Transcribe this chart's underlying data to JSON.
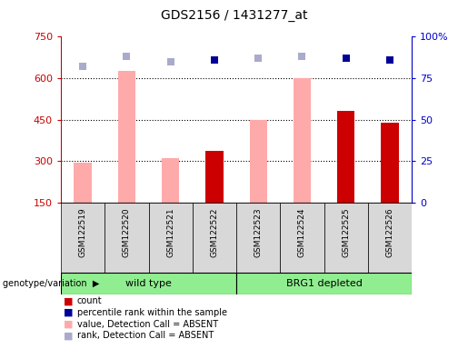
{
  "title": "GDS2156 / 1431277_at",
  "samples": [
    "GSM122519",
    "GSM122520",
    "GSM122521",
    "GSM122522",
    "GSM122523",
    "GSM122524",
    "GSM122525",
    "GSM122526"
  ],
  "count_values": [
    null,
    null,
    null,
    335,
    null,
    null,
    480,
    440
  ],
  "value_absent": [
    295,
    625,
    310,
    null,
    450,
    600,
    null,
    null
  ],
  "rank_absent_pct": [
    82,
    88,
    85,
    87,
    87,
    88,
    88,
    86
  ],
  "rank_present_pct": [
    null,
    null,
    null,
    86,
    null,
    null,
    87,
    86
  ],
  "ylim_left": [
    150,
    750
  ],
  "ylim_right": [
    0,
    100
  ],
  "yticks_left": [
    150,
    300,
    450,
    600,
    750
  ],
  "yticks_right": [
    0,
    25,
    50,
    75,
    100
  ],
  "ytick_right_labels": [
    "0",
    "25",
    "50",
    "75",
    "100%"
  ],
  "group1_label": "wild type",
  "group1_indices": [
    0,
    1,
    2,
    3
  ],
  "group2_label": "BRG1 depleted",
  "group2_indices": [
    4,
    5,
    6,
    7
  ],
  "group_label": "genotype/variation",
  "legend_labels": [
    "count",
    "percentile rank within the sample",
    "value, Detection Call = ABSENT",
    "rank, Detection Call = ABSENT"
  ],
  "bar_width": 0.4,
  "count_color": "#cc0000",
  "value_absent_color": "#ffaaaa",
  "rank_absent_color": "#aaaacc",
  "rank_present_color": "#000099",
  "grid_color": "#000000",
  "bg_xticklabel": "#d8d8d8",
  "group_bg": "#90ee90",
  "left_axis_color": "#cc0000",
  "right_axis_color": "#0000cc",
  "dotted_gridlines": [
    300,
    450,
    600
  ],
  "fig_width": 5.15,
  "fig_height": 3.84,
  "dpi": 100
}
